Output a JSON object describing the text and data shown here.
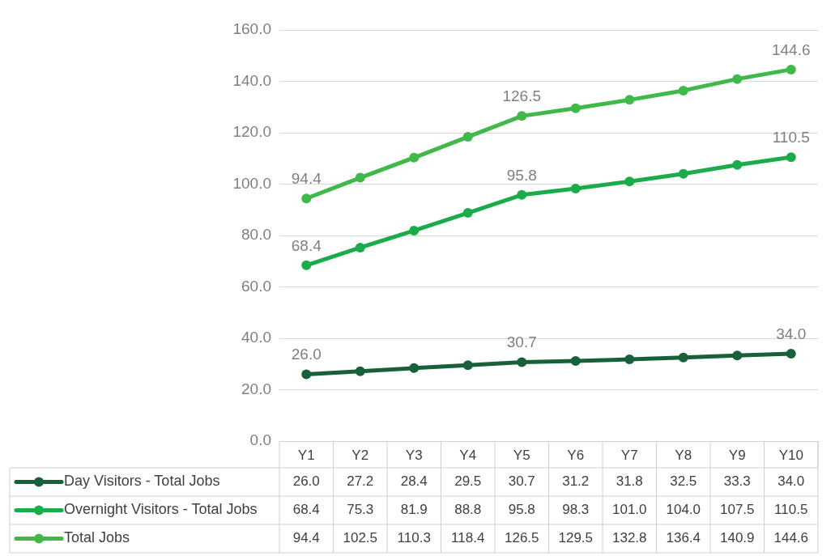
{
  "chart_data": {
    "type": "line",
    "categories": [
      "Y1",
      "Y2",
      "Y3",
      "Y4",
      "Y5",
      "Y6",
      "Y7",
      "Y8",
      "Y9",
      "Y10"
    ],
    "series": [
      {
        "name": "Day Visitors - Total Jobs",
        "color": "#17603a",
        "values": [
          26.0,
          27.2,
          28.4,
          29.5,
          30.7,
          31.2,
          31.8,
          32.5,
          33.3,
          34.0
        ],
        "value_labels": [
          "26.0",
          "27.2",
          "28.4",
          "29.5",
          "30.7",
          "31.2",
          "31.8",
          "32.5",
          "33.3",
          "34.0"
        ]
      },
      {
        "name": "Overnight Visitors - Total Jobs",
        "color": "#1cab4b",
        "values": [
          68.4,
          75.3,
          81.9,
          88.8,
          95.8,
          98.3,
          101.0,
          104.0,
          107.5,
          110.5
        ],
        "value_labels": [
          "68.4",
          "75.3",
          "81.9",
          "88.8",
          "95.8",
          "98.3",
          "101.0",
          "104.0",
          "107.5",
          "110.5"
        ]
      },
      {
        "name": "Total Jobs",
        "color": "#40b84a",
        "values": [
          94.4,
          102.5,
          110.3,
          118.4,
          126.5,
          129.5,
          132.8,
          136.4,
          140.9,
          144.6
        ],
        "value_labels": [
          "94.4",
          "102.5",
          "110.3",
          "118.4",
          "126.5",
          "129.5",
          "132.8",
          "136.4",
          "140.9",
          "144.6"
        ]
      }
    ],
    "annotations": [
      {
        "text": "26.0",
        "x": "Y1",
        "y": 26.0
      },
      {
        "text": "30.7",
        "x": "Y5",
        "y": 30.7
      },
      {
        "text": "34.0",
        "x": "Y10",
        "y": 34.0
      },
      {
        "text": "68.4",
        "x": "Y1",
        "y": 68.4
      },
      {
        "text": "95.8",
        "x": "Y5",
        "y": 95.8
      },
      {
        "text": "110.5",
        "x": "Y10",
        "y": 110.5
      },
      {
        "text": "94.4",
        "x": "Y1",
        "y": 94.4
      },
      {
        "text": "126.5",
        "x": "Y5",
        "y": 126.5
      },
      {
        "text": "144.6",
        "x": "Y10",
        "y": 144.6
      }
    ],
    "ylim": [
      0,
      160
    ],
    "yticks": [
      {
        "value": 0,
        "label": "0.0"
      },
      {
        "value": 20,
        "label": "20.0"
      },
      {
        "value": 40,
        "label": "40.0"
      },
      {
        "value": 60,
        "label": "60.0"
      },
      {
        "value": 80,
        "label": "80.0"
      },
      {
        "value": 100,
        "label": "100.0"
      },
      {
        "value": 120,
        "label": "120.0"
      },
      {
        "value": 140,
        "label": "140.0"
      },
      {
        "value": 160,
        "label": "160.0"
      }
    ],
    "grid": "y",
    "marker": "circle",
    "line_style": "solid",
    "legend": "bottom"
  }
}
